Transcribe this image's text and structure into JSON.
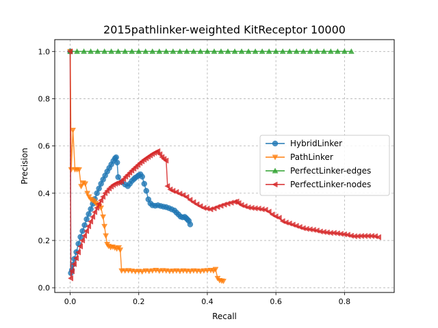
{
  "chart_data": {
    "type": "line",
    "title": "2015pathlinker-weighted KitReceptor 10000",
    "xlabel": "Recall",
    "ylabel": "Precision",
    "xlim": [
      -0.045,
      0.945
    ],
    "ylim": [
      -0.02,
      1.05
    ],
    "xticks": [
      "0.0",
      "0.2",
      "0.4",
      "0.6",
      "0.8"
    ],
    "yticks": [
      "0.0",
      "0.2",
      "0.4",
      "0.6",
      "0.8",
      "1.0"
    ],
    "grid": true,
    "legend_position": "center-right",
    "series": [
      {
        "name": "HybridLinker",
        "color": "#1f77b4",
        "marker": "circle",
        "points": [
          [
            0.0,
            1.0
          ],
          [
            0.002,
            0.062
          ],
          [
            0.005,
            0.075
          ],
          [
            0.008,
            0.098
          ],
          [
            0.012,
            0.122
          ],
          [
            0.018,
            0.151
          ],
          [
            0.024,
            0.186
          ],
          [
            0.03,
            0.215
          ],
          [
            0.036,
            0.24
          ],
          [
            0.042,
            0.265
          ],
          [
            0.048,
            0.29
          ],
          [
            0.054,
            0.312
          ],
          [
            0.06,
            0.333
          ],
          [
            0.066,
            0.355
          ],
          [
            0.072,
            0.376
          ],
          [
            0.078,
            0.4
          ],
          [
            0.084,
            0.42
          ],
          [
            0.09,
            0.44
          ],
          [
            0.096,
            0.458
          ],
          [
            0.102,
            0.475
          ],
          [
            0.108,
            0.492
          ],
          [
            0.114,
            0.507
          ],
          [
            0.12,
            0.522
          ],
          [
            0.126,
            0.537
          ],
          [
            0.131,
            0.548
          ],
          [
            0.134,
            0.552
          ],
          [
            0.137,
            0.53
          ],
          [
            0.14,
            0.468
          ],
          [
            0.15,
            0.447
          ],
          [
            0.16,
            0.437
          ],
          [
            0.168,
            0.43
          ],
          [
            0.174,
            0.44
          ],
          [
            0.18,
            0.452
          ],
          [
            0.186,
            0.46
          ],
          [
            0.19,
            0.466
          ],
          [
            0.196,
            0.471
          ],
          [
            0.2,
            0.476
          ],
          [
            0.205,
            0.48
          ],
          [
            0.21,
            0.47
          ],
          [
            0.216,
            0.44
          ],
          [
            0.222,
            0.41
          ],
          [
            0.228,
            0.374
          ],
          [
            0.234,
            0.357
          ],
          [
            0.24,
            0.349
          ],
          [
            0.248,
            0.347
          ],
          [
            0.256,
            0.349
          ],
          [
            0.264,
            0.346
          ],
          [
            0.272,
            0.343
          ],
          [
            0.28,
            0.341
          ],
          [
            0.288,
            0.337
          ],
          [
            0.296,
            0.332
          ],
          [
            0.304,
            0.327
          ],
          [
            0.31,
            0.318
          ],
          [
            0.316,
            0.31
          ],
          [
            0.322,
            0.301
          ],
          [
            0.328,
            0.298
          ],
          [
            0.334,
            0.3
          ],
          [
            0.338,
            0.295
          ],
          [
            0.342,
            0.289
          ],
          [
            0.346,
            0.283
          ],
          [
            0.35,
            0.268
          ]
        ]
      },
      {
        "name": "PathLinker",
        "color": "#ff7f0e",
        "marker": "triangle-down",
        "points": [
          [
            0.0,
            1.0
          ],
          [
            0.003,
            0.5
          ],
          [
            0.008,
            0.667
          ],
          [
            0.014,
            0.5
          ],
          [
            0.02,
            0.5
          ],
          [
            0.026,
            0.5
          ],
          [
            0.032,
            0.429
          ],
          [
            0.038,
            0.444
          ],
          [
            0.044,
            0.44
          ],
          [
            0.05,
            0.4
          ],
          [
            0.055,
            0.385
          ],
          [
            0.06,
            0.375
          ],
          [
            0.065,
            0.37
          ],
          [
            0.07,
            0.365
          ],
          [
            0.075,
            0.357
          ],
          [
            0.08,
            0.35
          ],
          [
            0.085,
            0.345
          ],
          [
            0.09,
            0.338
          ],
          [
            0.096,
            0.3
          ],
          [
            0.1,
            0.26
          ],
          [
            0.104,
            0.22
          ],
          [
            0.108,
            0.184
          ],
          [
            0.112,
            0.176
          ],
          [
            0.118,
            0.171
          ],
          [
            0.124,
            0.173
          ],
          [
            0.13,
            0.169
          ],
          [
            0.136,
            0.165
          ],
          [
            0.142,
            0.17
          ],
          [
            0.146,
            0.16
          ],
          [
            0.15,
            0.072
          ],
          [
            0.16,
            0.072
          ],
          [
            0.17,
            0.073
          ],
          [
            0.18,
            0.071
          ],
          [
            0.19,
            0.069
          ],
          [
            0.2,
            0.07
          ],
          [
            0.21,
            0.068
          ],
          [
            0.22,
            0.072
          ],
          [
            0.23,
            0.07
          ],
          [
            0.24,
            0.072
          ],
          [
            0.25,
            0.074
          ],
          [
            0.26,
            0.071
          ],
          [
            0.27,
            0.073
          ],
          [
            0.28,
            0.072
          ],
          [
            0.29,
            0.07
          ],
          [
            0.3,
            0.071
          ],
          [
            0.31,
            0.072
          ],
          [
            0.32,
            0.07
          ],
          [
            0.33,
            0.072
          ],
          [
            0.34,
            0.071
          ],
          [
            0.35,
            0.07
          ],
          [
            0.36,
            0.072
          ],
          [
            0.37,
            0.071
          ],
          [
            0.38,
            0.07
          ],
          [
            0.39,
            0.072
          ],
          [
            0.4,
            0.073
          ],
          [
            0.41,
            0.074
          ],
          [
            0.418,
            0.072
          ],
          [
            0.424,
            0.078
          ],
          [
            0.43,
            0.04
          ],
          [
            0.436,
            0.031
          ],
          [
            0.442,
            0.029
          ],
          [
            0.447,
            0.028
          ]
        ]
      },
      {
        "name": "PerfectLinker-edges",
        "color": "#2ca02c",
        "marker": "triangle-up",
        "points": [
          [
            0.0,
            1.0
          ],
          [
            0.02,
            1.0
          ],
          [
            0.04,
            1.0
          ],
          [
            0.06,
            1.0
          ],
          [
            0.08,
            1.0
          ],
          [
            0.1,
            1.0
          ],
          [
            0.12,
            1.0
          ],
          [
            0.14,
            1.0
          ],
          [
            0.16,
            1.0
          ],
          [
            0.18,
            1.0
          ],
          [
            0.2,
            1.0
          ],
          [
            0.22,
            1.0
          ],
          [
            0.24,
            1.0
          ],
          [
            0.26,
            1.0
          ],
          [
            0.28,
            1.0
          ],
          [
            0.3,
            1.0
          ],
          [
            0.32,
            1.0
          ],
          [
            0.34,
            1.0
          ],
          [
            0.36,
            1.0
          ],
          [
            0.38,
            1.0
          ],
          [
            0.4,
            1.0
          ],
          [
            0.42,
            1.0
          ],
          [
            0.44,
            1.0
          ],
          [
            0.46,
            1.0
          ],
          [
            0.48,
            1.0
          ],
          [
            0.5,
            1.0
          ],
          [
            0.52,
            1.0
          ],
          [
            0.54,
            1.0
          ],
          [
            0.56,
            1.0
          ],
          [
            0.58,
            1.0
          ],
          [
            0.6,
            1.0
          ],
          [
            0.62,
            1.0
          ],
          [
            0.64,
            1.0
          ],
          [
            0.66,
            1.0
          ],
          [
            0.68,
            1.0
          ],
          [
            0.7,
            1.0
          ],
          [
            0.72,
            1.0
          ],
          [
            0.74,
            1.0
          ],
          [
            0.76,
            1.0
          ],
          [
            0.78,
            1.0
          ],
          [
            0.8,
            1.0
          ],
          [
            0.82,
            1.0
          ]
        ]
      },
      {
        "name": "PerfectLinker-nodes",
        "color": "#d62728",
        "marker": "triangle-left",
        "points": [
          [
            0.0,
            1.0
          ],
          [
            0.002,
            0.04
          ],
          [
            0.006,
            0.07
          ],
          [
            0.012,
            0.1
          ],
          [
            0.018,
            0.125
          ],
          [
            0.024,
            0.15
          ],
          [
            0.03,
            0.175
          ],
          [
            0.036,
            0.2
          ],
          [
            0.042,
            0.22
          ],
          [
            0.048,
            0.24
          ],
          [
            0.054,
            0.26
          ],
          [
            0.06,
            0.28
          ],
          [
            0.066,
            0.3
          ],
          [
            0.072,
            0.32
          ],
          [
            0.078,
            0.338
          ],
          [
            0.084,
            0.355
          ],
          [
            0.09,
            0.37
          ],
          [
            0.096,
            0.385
          ],
          [
            0.102,
            0.4
          ],
          [
            0.108,
            0.41
          ],
          [
            0.114,
            0.42
          ],
          [
            0.12,
            0.428
          ],
          [
            0.126,
            0.435
          ],
          [
            0.132,
            0.44
          ],
          [
            0.138,
            0.443
          ],
          [
            0.144,
            0.446
          ],
          [
            0.15,
            0.45
          ],
          [
            0.156,
            0.46
          ],
          [
            0.162,
            0.47
          ],
          [
            0.168,
            0.478
          ],
          [
            0.174,
            0.487
          ],
          [
            0.18,
            0.496
          ],
          [
            0.186,
            0.504
          ],
          [
            0.192,
            0.512
          ],
          [
            0.198,
            0.52
          ],
          [
            0.204,
            0.528
          ],
          [
            0.21,
            0.535
          ],
          [
            0.216,
            0.542
          ],
          [
            0.222,
            0.548
          ],
          [
            0.228,
            0.554
          ],
          [
            0.234,
            0.56
          ],
          [
            0.24,
            0.566
          ],
          [
            0.246,
            0.571
          ],
          [
            0.252,
            0.575
          ],
          [
            0.256,
            0.578
          ],
          [
            0.262,
            0.565
          ],
          [
            0.268,
            0.553
          ],
          [
            0.274,
            0.545
          ],
          [
            0.28,
            0.538
          ],
          [
            0.284,
            0.43
          ],
          [
            0.292,
            0.416
          ],
          [
            0.3,
            0.41
          ],
          [
            0.31,
            0.405
          ],
          [
            0.32,
            0.398
          ],
          [
            0.33,
            0.392
          ],
          [
            0.34,
            0.384
          ],
          [
            0.35,
            0.372
          ],
          [
            0.36,
            0.362
          ],
          [
            0.37,
            0.353
          ],
          [
            0.38,
            0.345
          ],
          [
            0.39,
            0.338
          ],
          [
            0.4,
            0.335
          ],
          [
            0.41,
            0.332
          ],
          [
            0.42,
            0.336
          ],
          [
            0.43,
            0.342
          ],
          [
            0.44,
            0.347
          ],
          [
            0.45,
            0.352
          ],
          [
            0.46,
            0.356
          ],
          [
            0.47,
            0.36
          ],
          [
            0.48,
            0.363
          ],
          [
            0.486,
            0.365
          ],
          [
            0.492,
            0.358
          ],
          [
            0.5,
            0.35
          ],
          [
            0.51,
            0.345
          ],
          [
            0.52,
            0.34
          ],
          [
            0.53,
            0.338
          ],
          [
            0.54,
            0.336
          ],
          [
            0.55,
            0.335
          ],
          [
            0.56,
            0.332
          ],
          [
            0.57,
            0.33
          ],
          [
            0.58,
            0.322
          ],
          [
            0.59,
            0.31
          ],
          [
            0.6,
            0.302
          ],
          [
            0.61,
            0.296
          ],
          [
            0.62,
            0.282
          ],
          [
            0.63,
            0.276
          ],
          [
            0.64,
            0.272
          ],
          [
            0.65,
            0.267
          ],
          [
            0.66,
            0.262
          ],
          [
            0.67,
            0.257
          ],
          [
            0.68,
            0.252
          ],
          [
            0.69,
            0.249
          ],
          [
            0.7,
            0.247
          ],
          [
            0.71,
            0.245
          ],
          [
            0.72,
            0.242
          ],
          [
            0.73,
            0.238
          ],
          [
            0.74,
            0.236
          ],
          [
            0.75,
            0.234
          ],
          [
            0.76,
            0.232
          ],
          [
            0.77,
            0.232
          ],
          [
            0.78,
            0.23
          ],
          [
            0.79,
            0.228
          ],
          [
            0.8,
            0.226
          ],
          [
            0.81,
            0.224
          ],
          [
            0.82,
            0.22
          ],
          [
            0.83,
            0.218
          ],
          [
            0.84,
            0.218
          ],
          [
            0.85,
            0.219
          ],
          [
            0.86,
            0.219
          ],
          [
            0.87,
            0.219
          ],
          [
            0.88,
            0.219
          ],
          [
            0.89,
            0.218
          ],
          [
            0.9,
            0.214
          ]
        ]
      }
    ]
  }
}
